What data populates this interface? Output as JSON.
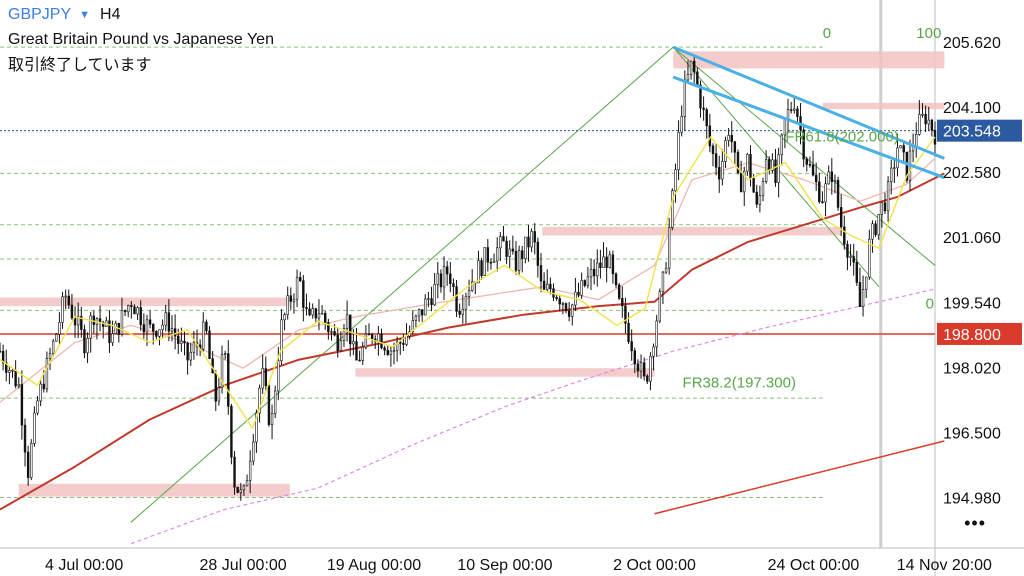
{
  "header": {
    "symbol": "GBPJPY",
    "caret_glyph": "▼",
    "timeframe": "H4",
    "instrument_name": "Great Britain Pound vs Japanese Yen",
    "market_status": "取引終了しています"
  },
  "menu": {
    "label": "•••"
  },
  "chart_data": {
    "type": "candlestick",
    "title": "GBPJPY H4",
    "ylim": [
      193.8,
      206.6
    ],
    "xlim": [
      0,
      100
    ],
    "y_ticks": [
      "205.620",
      "204.100",
      "202.580",
      "201.060",
      "199.540",
      "198.020",
      "196.500",
      "194.980"
    ],
    "x_ticks": [
      {
        "label": "4 Jul 00:00",
        "x": 9
      },
      {
        "label": "28 Jul 00:00",
        "x": 26
      },
      {
        "label": "19 Aug 00:00",
        "x": 40
      },
      {
        "label": "10 Sep 00:00",
        "x": 54
      },
      {
        "label": "2 Oct 00:00",
        "x": 70
      },
      {
        "label": "24 Oct 00:00",
        "x": 87
      },
      {
        "label": "14 Nov 20:00",
        "x": 101
      }
    ],
    "current_price": {
      "label": "203.548",
      "value": 203.548,
      "color": "#2c5aa0"
    },
    "red_level": {
      "label": "198.800",
      "value": 198.8,
      "color": "#d93a2a"
    },
    "colors": {
      "candle": "#111111",
      "ma_fast": "#f2e24a",
      "ma_mid": "#f0b7b0",
      "ma_slow": "#c0392b",
      "ma_dashed": "#e08be8",
      "zone": "#f3c3c3",
      "fib": "#5aa64a",
      "trend_blue": "#4ab0e6",
      "trend_red": "#d93a2a",
      "grid_dash": "#6db35a"
    },
    "zones": [
      {
        "x0": 0,
        "x1": 31,
        "y0": 199.45,
        "y1": 199.65
      },
      {
        "x0": 2,
        "x1": 31,
        "y0": 195.0,
        "y1": 195.3
      },
      {
        "x0": 38,
        "x1": 70,
        "y0": 197.8,
        "y1": 198.0
      },
      {
        "x0": 58,
        "x1": 90,
        "y0": 201.1,
        "y1": 201.3
      },
      {
        "x0": 72,
        "x1": 101,
        "y0": 205.0,
        "y1": 205.4
      },
      {
        "x0": 88,
        "x1": 101,
        "y0": 204.05,
        "y1": 204.2
      }
    ],
    "dashed_levels": [
      205.5,
      202.55,
      201.35,
      200.55,
      199.35,
      197.3,
      194.98
    ],
    "fibonacci": {
      "labels": [
        {
          "text": "0",
          "x": 88,
          "y": 205.62
        },
        {
          "text": "100",
          "x": 98,
          "y": 205.62
        },
        {
          "text": "FR61.8(202.000)",
          "x": 84,
          "y": 203.2
        },
        {
          "text": "0",
          "x": 99,
          "y": 199.3
        },
        {
          "text": "FR38.2(197.300)",
          "x": 73,
          "y": 197.45
        }
      ],
      "green_lines": [
        {
          "x0": 14,
          "y0": 194.4,
          "x1": 72,
          "y1": 205.5
        },
        {
          "x0": 72,
          "y0": 205.5,
          "x1": 100,
          "y1": 200.4
        },
        {
          "x0": 72,
          "y0": 205.5,
          "x1": 94,
          "y1": 199.9
        }
      ]
    },
    "trendlines": [
      {
        "x0": 72,
        "y0": 205.5,
        "x1": 101,
        "y1": 202.9,
        "color": "#4ab0e6"
      },
      {
        "x0": 72,
        "y0": 204.8,
        "x1": 101,
        "y1": 202.45,
        "color": "#4ab0e6"
      },
      {
        "x0": 70,
        "y0": 194.6,
        "x1": 101,
        "y1": 196.3,
        "color": "#d93a2a"
      }
    ],
    "ma_slow": [
      [
        0,
        194.7
      ],
      [
        8,
        195.7
      ],
      [
        16,
        196.8
      ],
      [
        24,
        197.6
      ],
      [
        32,
        198.2
      ],
      [
        40,
        198.55
      ],
      [
        48,
        198.95
      ],
      [
        56,
        199.25
      ],
      [
        64,
        199.45
      ],
      [
        70,
        199.55
      ],
      [
        74,
        200.3
      ],
      [
        80,
        200.95
      ],
      [
        86,
        201.35
      ],
      [
        92,
        201.75
      ],
      [
        96,
        202.0
      ],
      [
        101,
        202.55
      ]
    ],
    "ma_dashed": [
      [
        14,
        193.9
      ],
      [
        24,
        194.7
      ],
      [
        34,
        195.2
      ],
      [
        44,
        196.2
      ],
      [
        54,
        197.1
      ],
      [
        62,
        197.7
      ],
      [
        72,
        198.4
      ],
      [
        82,
        198.95
      ],
      [
        92,
        199.45
      ],
      [
        100,
        199.85
      ]
    ],
    "ma_mid": [
      [
        0,
        197.2
      ],
      [
        8,
        198.6
      ],
      [
        14,
        199.0
      ],
      [
        20,
        198.6
      ],
      [
        26,
        198.0
      ],
      [
        32,
        198.9
      ],
      [
        38,
        199.2
      ],
      [
        46,
        199.5
      ],
      [
        52,
        199.7
      ],
      [
        58,
        199.9
      ],
      [
        64,
        199.6
      ],
      [
        70,
        200.4
      ],
      [
        74,
        202.4
      ],
      [
        80,
        202.8
      ],
      [
        86,
        202.4
      ],
      [
        92,
        201.9
      ],
      [
        97,
        202.3
      ],
      [
        100,
        202.9
      ]
    ],
    "ma_fast": [
      [
        0,
        198.2
      ],
      [
        4,
        197.6
      ],
      [
        8,
        199.2
      ],
      [
        12,
        199.0
      ],
      [
        16,
        198.6
      ],
      [
        20,
        198.9
      ],
      [
        24,
        197.6
      ],
      [
        27,
        196.6
      ],
      [
        30,
        198.4
      ],
      [
        34,
        199.1
      ],
      [
        38,
        198.8
      ],
      [
        42,
        198.5
      ],
      [
        46,
        199.2
      ],
      [
        50,
        199.9
      ],
      [
        54,
        200.4
      ],
      [
        58,
        199.8
      ],
      [
        62,
        199.6
      ],
      [
        66,
        199.0
      ],
      [
        69,
        199.4
      ],
      [
        72,
        202.0
      ],
      [
        76,
        203.4
      ],
      [
        80,
        202.4
      ],
      [
        84,
        202.8
      ],
      [
        88,
        201.5
      ],
      [
        91,
        201.1
      ],
      [
        94,
        200.8
      ],
      [
        97,
        202.5
      ],
      [
        100,
        203.4
      ]
    ],
    "candles_path": [
      [
        0,
        198.4
      ],
      [
        2,
        197.6
      ],
      [
        3,
        195.6
      ],
      [
        4,
        197.2
      ],
      [
        6,
        198.8
      ],
      [
        7,
        199.7
      ],
      [
        9,
        198.6
      ],
      [
        10,
        199.3
      ],
      [
        12,
        198.7
      ],
      [
        14,
        199.6
      ],
      [
        16,
        198.9
      ],
      [
        18,
        199.1
      ],
      [
        20,
        198.2
      ],
      [
        22,
        198.9
      ],
      [
        23,
        197.2
      ],
      [
        24,
        198.4
      ],
      [
        25,
        195.4
      ],
      [
        26,
        194.9
      ],
      [
        27,
        196.4
      ],
      [
        28,
        197.9
      ],
      [
        29,
        196.6
      ],
      [
        30,
        198.9
      ],
      [
        31,
        199.6
      ],
      [
        32,
        200.1
      ],
      [
        33,
        199.0
      ],
      [
        34,
        199.4
      ],
      [
        36,
        198.6
      ],
      [
        37,
        199.3
      ],
      [
        38,
        198.1
      ],
      [
        40,
        198.9
      ],
      [
        42,
        198.4
      ],
      [
        44,
        198.9
      ],
      [
        46,
        199.7
      ],
      [
        48,
        200.3
      ],
      [
        49,
        199.4
      ],
      [
        50,
        199.9
      ],
      [
        52,
        200.6
      ],
      [
        54,
        200.9
      ],
      [
        55,
        200.4
      ],
      [
        57,
        201.1
      ],
      [
        58,
        199.7
      ],
      [
        59,
        199.9
      ],
      [
        61,
        199.4
      ],
      [
        63,
        200.1
      ],
      [
        65,
        200.6
      ],
      [
        66,
        199.6
      ],
      [
        67,
        199.0
      ],
      [
        68,
        198.3
      ],
      [
        69,
        197.6
      ],
      [
        70,
        198.9
      ],
      [
        71,
        200.1
      ],
      [
        72,
        202.1
      ],
      [
        73,
        204.3
      ],
      [
        74,
        205.1
      ],
      [
        75,
        204.2
      ],
      [
        76,
        203.1
      ],
      [
        77,
        202.6
      ],
      [
        78,
        203.7
      ],
      [
        79,
        202.2
      ],
      [
        80,
        202.9
      ],
      [
        81,
        201.6
      ],
      [
        82,
        203.1
      ],
      [
        83,
        202.3
      ],
      [
        84,
        203.8
      ],
      [
        85,
        204.3
      ],
      [
        86,
        203.1
      ],
      [
        87,
        202.4
      ],
      [
        88,
        202.0
      ],
      [
        89,
        202.6
      ],
      [
        90,
        201.3
      ],
      [
        91,
        200.6
      ],
      [
        92,
        199.4
      ],
      [
        93,
        200.9
      ],
      [
        94,
        201.6
      ],
      [
        95,
        202.1
      ],
      [
        96,
        203.2
      ],
      [
        97,
        202.6
      ],
      [
        98,
        203.6
      ],
      [
        99,
        203.9
      ],
      [
        100,
        203.5
      ]
    ]
  }
}
